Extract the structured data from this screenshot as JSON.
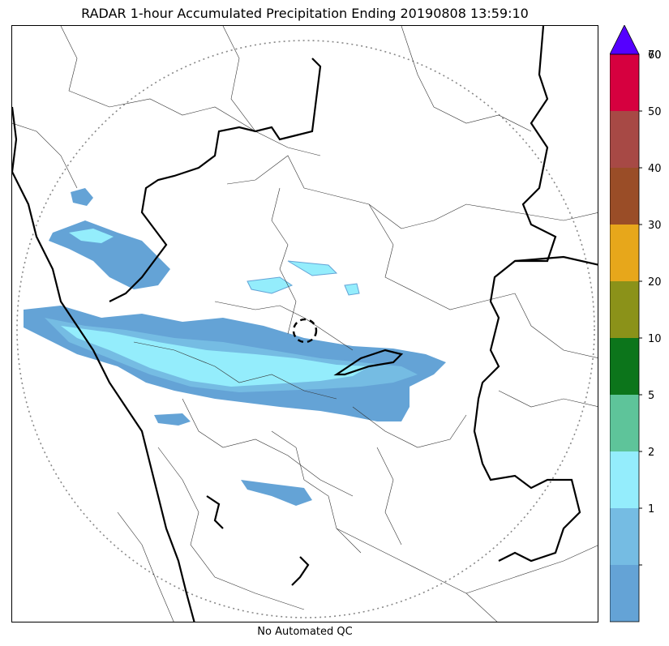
{
  "title": "RADAR 1-hour Accumulated Precipitation Ending 20190808 13:59:10",
  "footer_note": "No Automated QC",
  "colorbar": {
    "segments": [
      {
        "label": "",
        "color": "#64a3d6"
      },
      {
        "label": "1",
        "color": "#75bce3"
      },
      {
        "label": "2",
        "color": "#94edfc"
      },
      {
        "label": "5",
        "color": "#5ec49a"
      },
      {
        "label": "10",
        "color": "#0c751b"
      },
      {
        "label": "20",
        "color": "#8b9219"
      },
      {
        "label": "30",
        "color": "#e7a71b"
      },
      {
        "label": "40",
        "color": "#9a4d27"
      },
      {
        "label": "50",
        "color": "#a74945"
      },
      {
        "label": "60",
        "color": "#d6003f"
      }
    ],
    "top_label": "70",
    "extend_color": "#5500ff"
  }
}
